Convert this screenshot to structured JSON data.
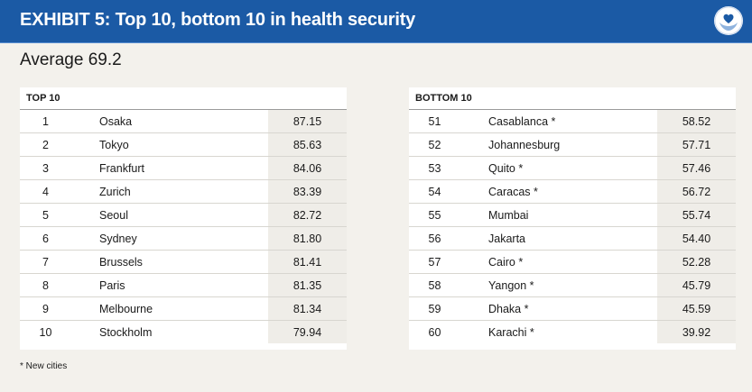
{
  "header": {
    "title": "EXHIBIT 5: Top 10, bottom 10 in health security",
    "logo_icon": "heart-in-hands-icon"
  },
  "average_label": "Average 69.2",
  "top10": {
    "heading": "TOP 10",
    "rows": [
      {
        "rank": "1",
        "city": "Osaka",
        "score": "87.15"
      },
      {
        "rank": "2",
        "city": "Tokyo",
        "score": "85.63"
      },
      {
        "rank": "3",
        "city": "Frankfurt",
        "score": "84.06"
      },
      {
        "rank": "4",
        "city": "Zurich",
        "score": "83.39"
      },
      {
        "rank": "5",
        "city": "Seoul",
        "score": "82.72"
      },
      {
        "rank": "6",
        "city": "Sydney",
        "score": "81.80"
      },
      {
        "rank": "7",
        "city": "Brussels",
        "score": "81.41"
      },
      {
        "rank": "8",
        "city": "Paris",
        "score": "81.35"
      },
      {
        "rank": "9",
        "city": "Melbourne",
        "score": "81.34"
      },
      {
        "rank": "10",
        "city": "Stockholm",
        "score": "79.94"
      }
    ]
  },
  "bottom10": {
    "heading": "BOTTOM 10",
    "rows": [
      {
        "rank": "51",
        "city": "Casablanca *",
        "score": "58.52"
      },
      {
        "rank": "52",
        "city": "Johannesburg",
        "score": "57.71"
      },
      {
        "rank": "53",
        "city": "Quito *",
        "score": "57.46"
      },
      {
        "rank": "54",
        "city": "Caracas *",
        "score": "56.72"
      },
      {
        "rank": "55",
        "city": "Mumbai",
        "score": "55.74"
      },
      {
        "rank": "56",
        "city": "Jakarta",
        "score": "54.40"
      },
      {
        "rank": "57",
        "city": "Cairo *",
        "score": "52.28"
      },
      {
        "rank": "58",
        "city": "Yangon *",
        "score": "45.79"
      },
      {
        "rank": "59",
        "city": "Dhaka *",
        "score": "45.59"
      },
      {
        "rank": "60",
        "city": "Karachi *",
        "score": "39.92"
      }
    ]
  },
  "footnote": "* New cities",
  "colors": {
    "header_bg": "#1b5aa5",
    "page_bg": "#f3f1ec",
    "score_cell_bg": "#efede8"
  }
}
